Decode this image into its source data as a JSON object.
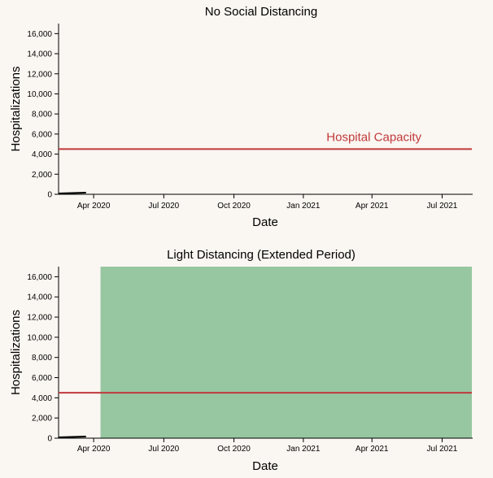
{
  "colors": {
    "background": "#faf6f1",
    "capacity": "#c0393b",
    "distancing_fill": "#96c7a1",
    "axis": "#000000",
    "data_line": "#000000"
  },
  "chart_data": [
    {
      "type": "line",
      "title": "No Social Distancing",
      "xlabel": "Date",
      "ylabel": "Hospitalizations",
      "ylim": [
        0,
        17000
      ],
      "xlim": [
        "2020-01-15",
        "2021-07-10"
      ],
      "y_ticks": [
        "0",
        "2,000",
        "4,000",
        "6,000",
        "8,000",
        "10,000",
        "12,000",
        "14,000",
        "16,000"
      ],
      "x_ticks": [
        {
          "date": "2020-03-01",
          "label": "Apr 2020"
        },
        {
          "date": "2020-06-01",
          "label": "Jul 2020"
        },
        {
          "date": "2020-09-01",
          "label": "Oct 2020"
        },
        {
          "date": "2020-12-01",
          "label": "Jan 2021"
        },
        {
          "date": "2021-03-01",
          "label": "Apr 2021"
        },
        {
          "date": "2021-06-01",
          "label": "Jul 2021"
        }
      ],
      "series": [
        {
          "x": [
            "2020-01-15",
            "2020-02-01",
            "2020-02-20"
          ],
          "y": [
            0,
            40,
            80
          ]
        }
      ],
      "capacity": {
        "value": 4500,
        "label": "Hospital Capacity"
      },
      "distancing_period": null,
      "grid": false
    },
    {
      "type": "line",
      "title": "Light Distancing (Extended Period)",
      "xlabel": "Date",
      "ylabel": "Hospitalizations",
      "ylim": [
        0,
        17000
      ],
      "xlim": [
        "2020-01-15",
        "2021-07-10"
      ],
      "y_ticks": [
        "0",
        "2,000",
        "4,000",
        "6,000",
        "8,000",
        "10,000",
        "12,000",
        "14,000",
        "16,000"
      ],
      "x_ticks": [
        {
          "date": "2020-03-01",
          "label": "Apr 2020"
        },
        {
          "date": "2020-06-01",
          "label": "Jul 2020"
        },
        {
          "date": "2020-09-01",
          "label": "Oct 2020"
        },
        {
          "date": "2020-12-01",
          "label": "Jan 2021"
        },
        {
          "date": "2021-03-01",
          "label": "Apr 2021"
        },
        {
          "date": "2021-06-01",
          "label": "Jul 2021"
        }
      ],
      "series": [
        {
          "x": [
            "2020-01-15",
            "2020-02-01",
            "2020-02-20"
          ],
          "y": [
            0,
            40,
            80
          ]
        }
      ],
      "capacity": {
        "value": 4500,
        "label": ""
      },
      "distancing_period": {
        "start": "2020-03-10",
        "end": "2021-07-10"
      },
      "grid": false
    }
  ]
}
